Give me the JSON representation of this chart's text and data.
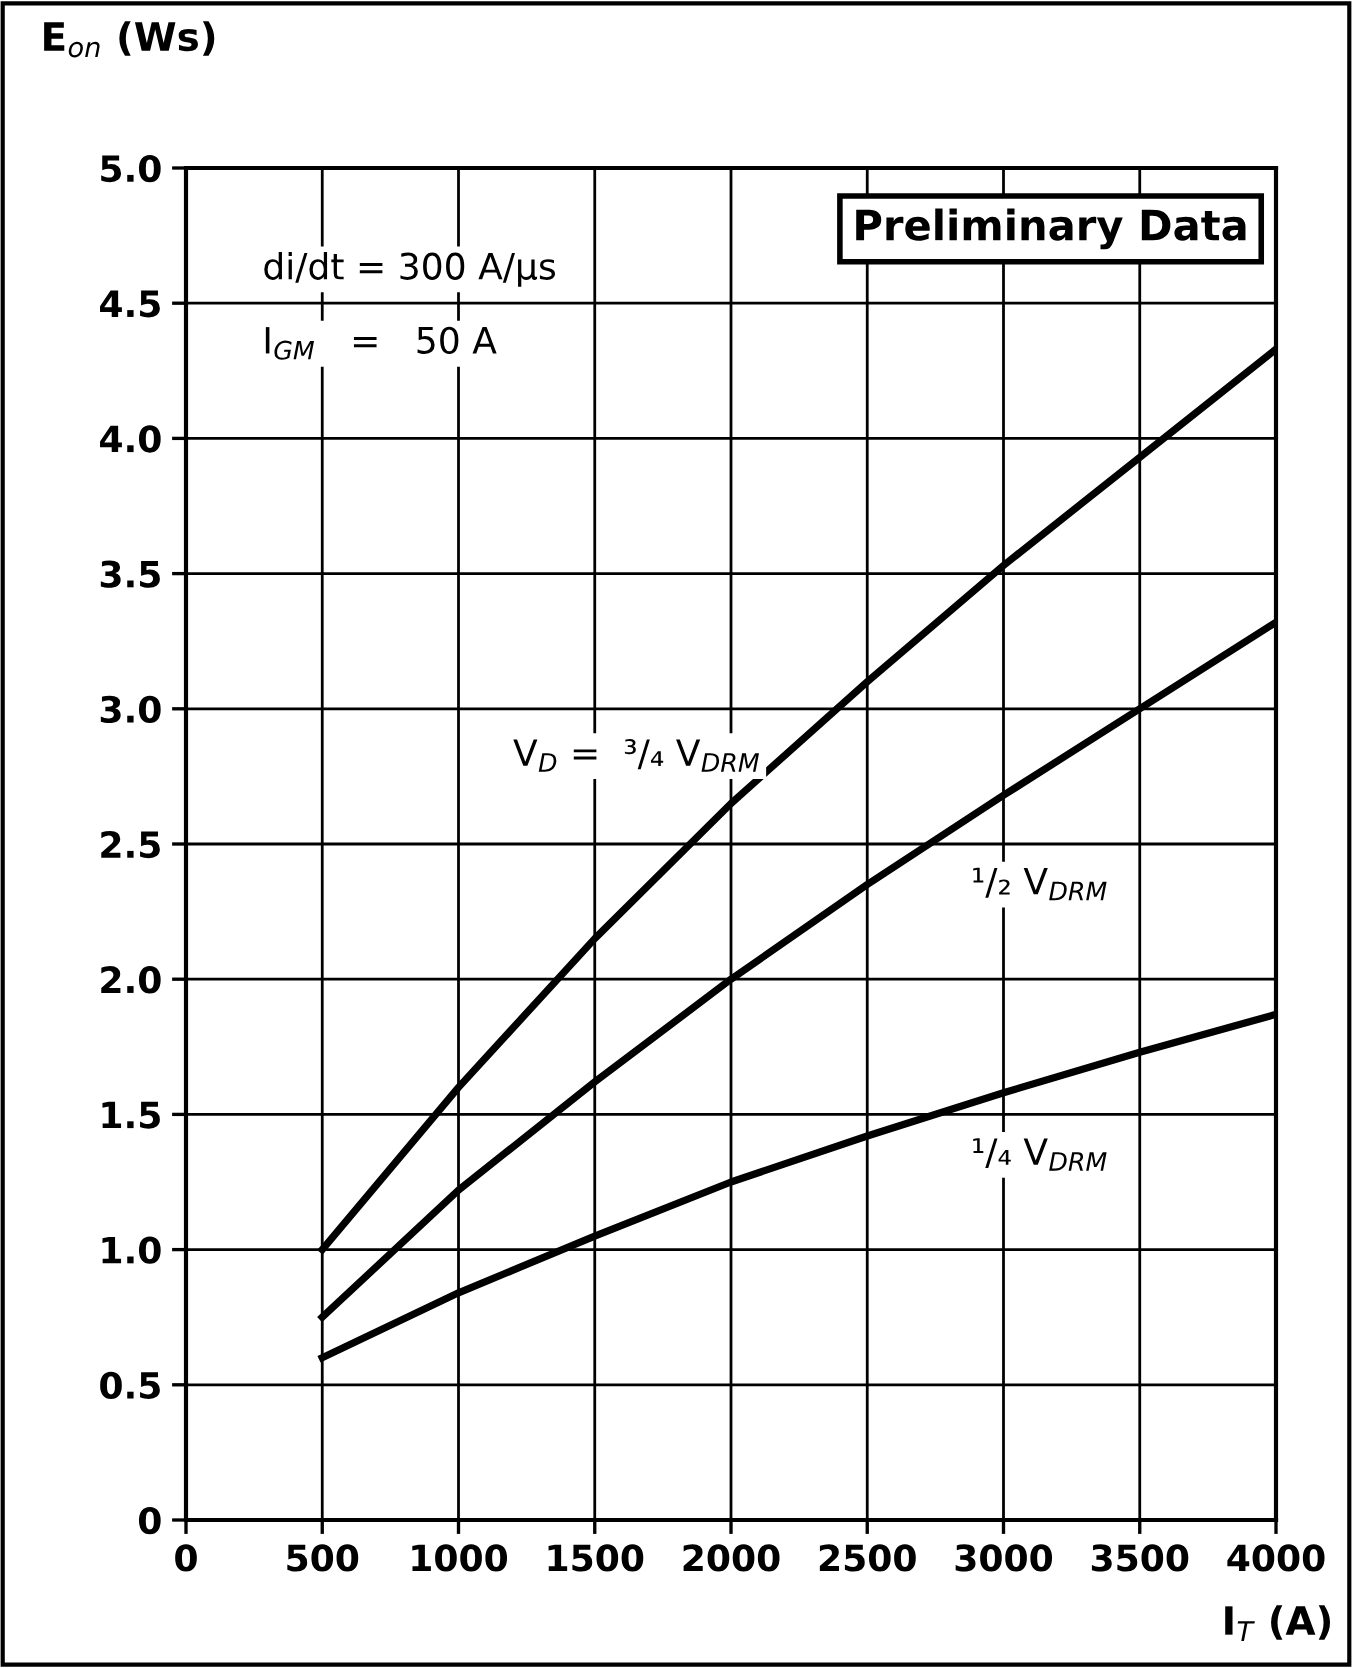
{
  "chart_data": {
    "type": "line",
    "xlabel": "I$_{T}$ (A)",
    "ylabel": "E$_{on}$ (Ws)",
    "x": [
      500,
      1000,
      1500,
      2000,
      2500,
      3000,
      3500,
      4000
    ],
    "series": [
      {
        "color": "#000000",
        "values": [
          1.0,
          1.6,
          2.15,
          2.65,
          3.1,
          3.53,
          3.93,
          4.33
        ]
      },
      {
        "color": "#000000",
        "values": [
          0.75,
          1.22,
          1.62,
          2.0,
          2.35,
          2.68,
          3.0,
          3.32
        ]
      },
      {
        "color": "#000000",
        "values": [
          0.6,
          0.84,
          1.05,
          1.25,
          1.42,
          1.58,
          1.73,
          1.87
        ]
      }
    ],
    "xlim": [
      0,
      4000
    ],
    "xticks": [
      0,
      500,
      1000,
      1500,
      2000,
      2500,
      3000,
      3500,
      4000
    ],
    "ylim": [
      0,
      5
    ],
    "yticks": [
      0,
      {
        "value": 0.5,
        "label": "0.5"
      },
      {
        "value": 1,
        "label": "1.0"
      },
      {
        "value": 1.5,
        "label": "1.5"
      },
      {
        "value": 2,
        "label": "2.0"
      },
      {
        "value": 2.5,
        "label": "2.5"
      },
      {
        "value": 3,
        "label": "3.0"
      },
      {
        "value": 3.5,
        "label": "3.5"
      },
      {
        "value": 4,
        "label": "4.0"
      },
      {
        "value": 4.5,
        "label": "4.5"
      },
      {
        "value": 5,
        "label": "5.0"
      }
    ],
    "grid": true,
    "marker": "none",
    "line_style": "solid",
    "legend": false,
    "annotations": [
      "Preliminary Data",
      "di/dt = 300 A/μs",
      "I$_{GM}$   =   50 A",
      "V$_{D}$ =  ³/₄ V$_{DRM}$",
      "¹/₂ V$_{DRM}$",
      "¹/₄ V$_{DRM}$"
    ]
  }
}
